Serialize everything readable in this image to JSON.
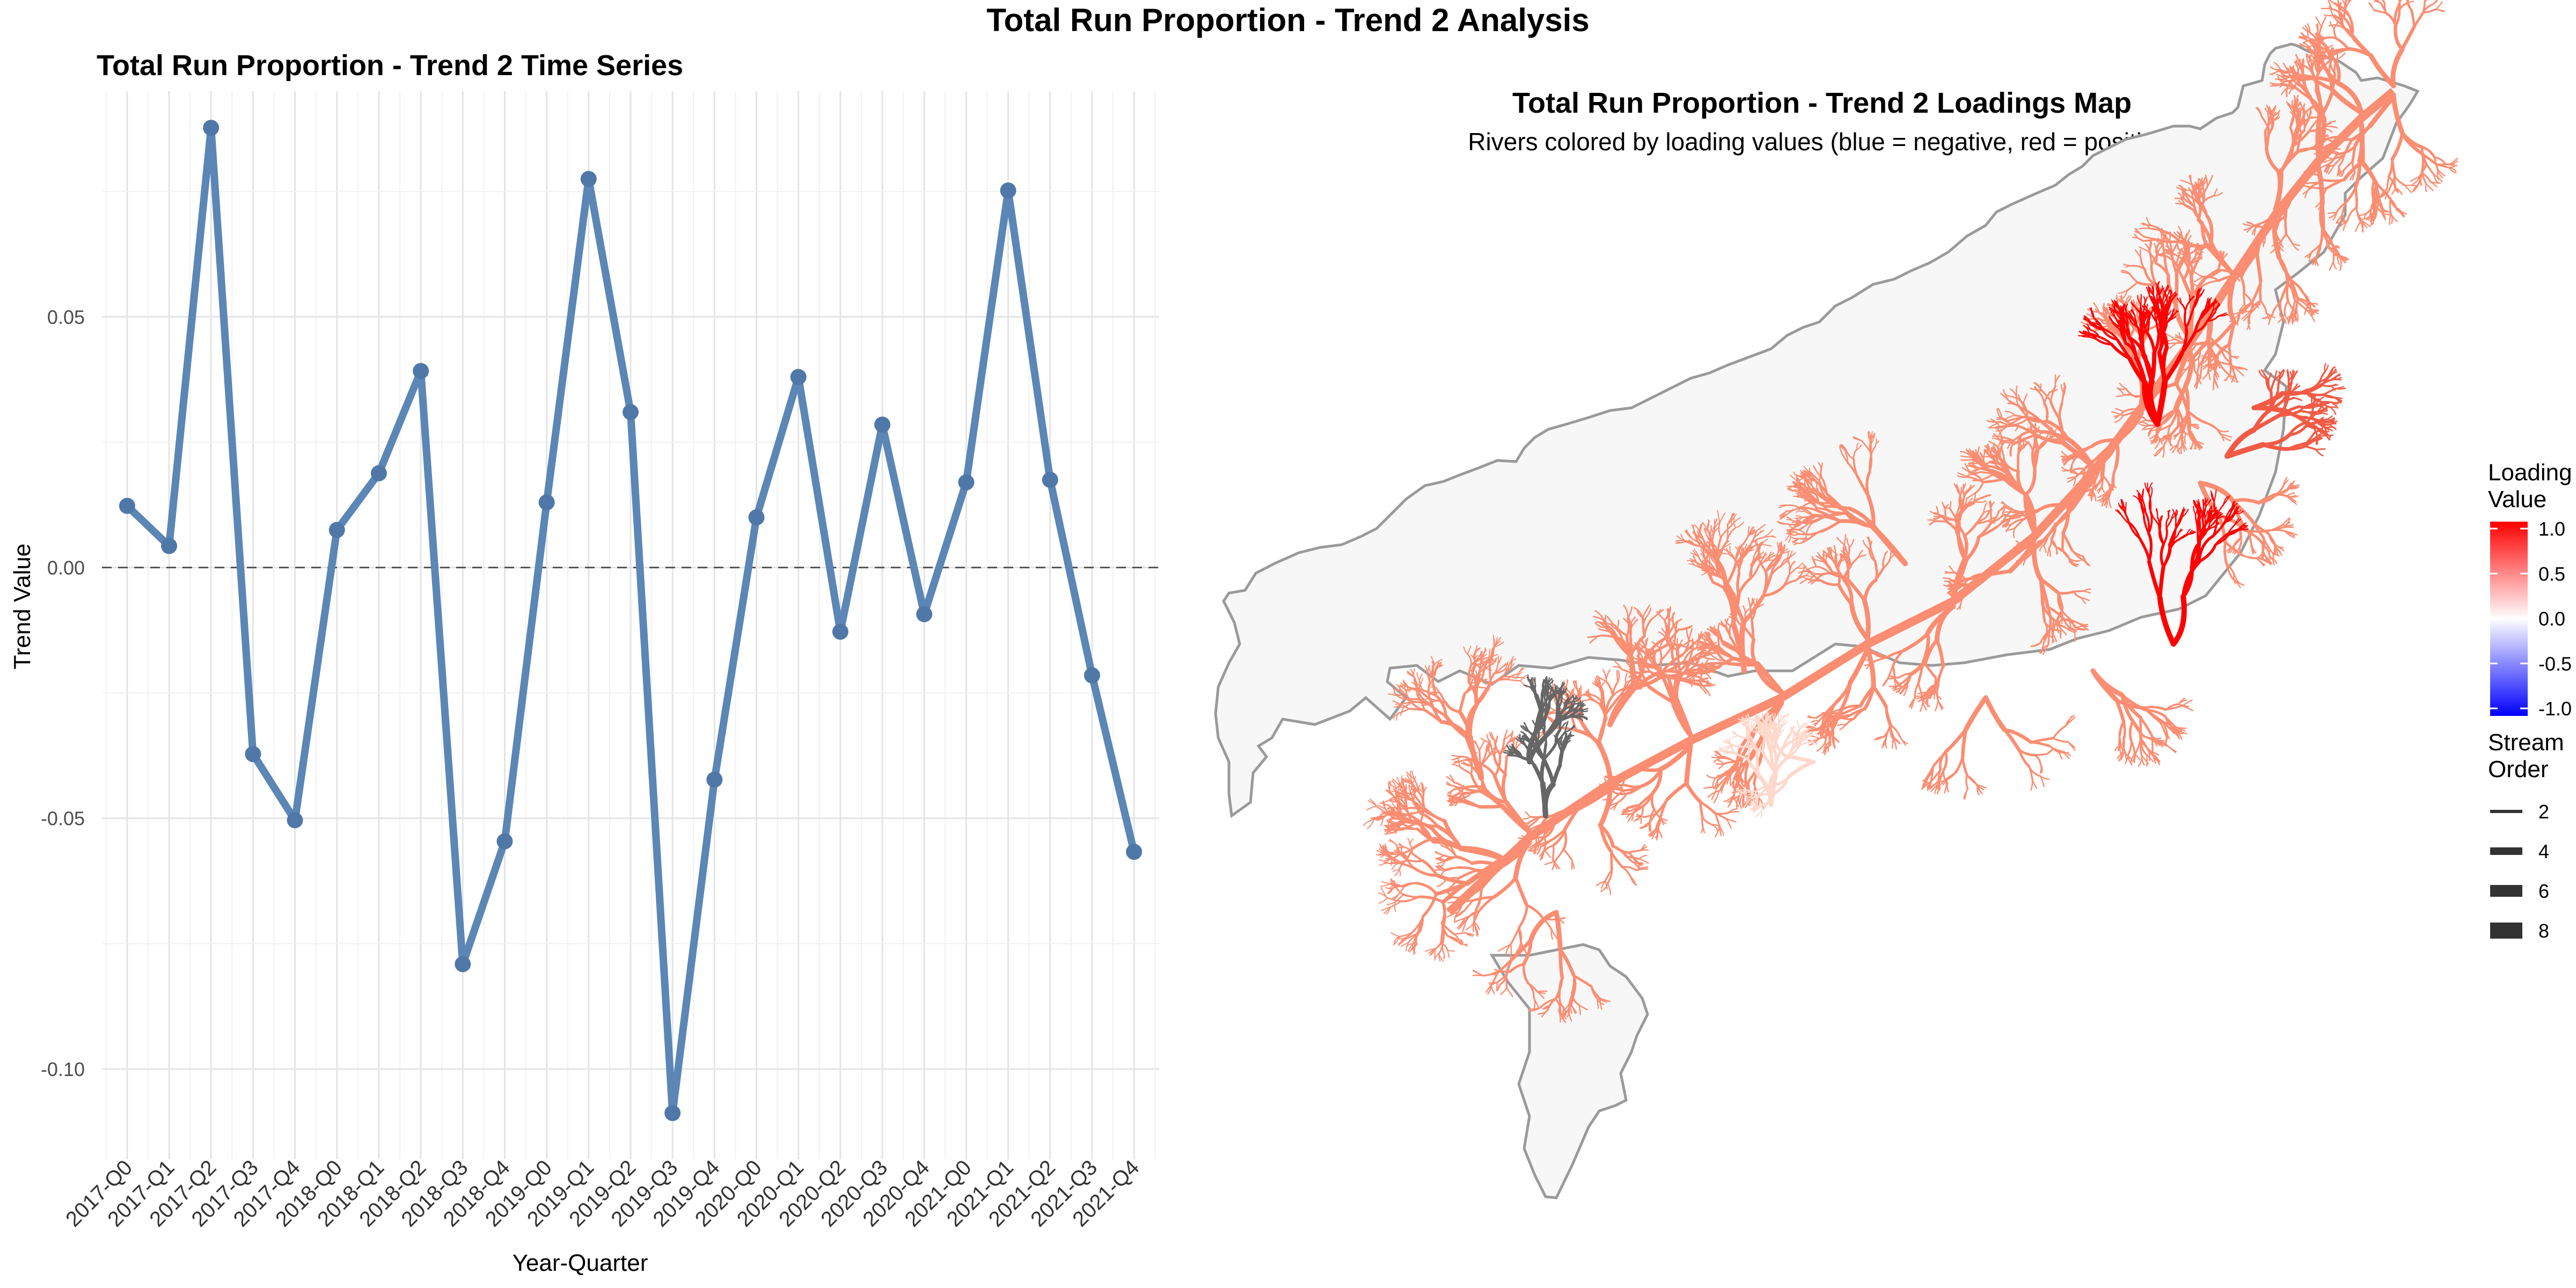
{
  "figure_title": "Total Run Proportion - Trend 2 Analysis",
  "chart_data": [
    {
      "type": "line",
      "title": "Total Run Proportion - Trend 2 Time Series",
      "xlabel": "Year-Quarter",
      "ylabel": "Trend Value",
      "categories": [
        "2017-Q0",
        "2017-Q1",
        "2017-Q2",
        "2017-Q3",
        "2017-Q4",
        "2018-Q0",
        "2018-Q1",
        "2018-Q2",
        "2018-Q3",
        "2018-Q4",
        "2019-Q0",
        "2019-Q1",
        "2019-Q2",
        "2019-Q3",
        "2019-Q4",
        "2020-Q0",
        "2020-Q1",
        "2020-Q2",
        "2020-Q3",
        "2020-Q4",
        "2021-Q0",
        "2021-Q1",
        "2021-Q2",
        "2021-Q3",
        "2021-Q4"
      ],
      "series": [
        {
          "values": [
            0.0123,
            0.0043,
            0.0877,
            -0.0372,
            -0.0504,
            0.0075,
            0.0188,
            0.0392,
            -0.0791,
            -0.0546,
            0.013,
            0.0775,
            0.031,
            -0.1088,
            -0.0423,
            0.01,
            0.038,
            -0.0128,
            0.0285,
            -0.0093,
            0.017,
            0.0752,
            0.0175,
            -0.0215,
            -0.0567
          ]
        }
      ],
      "yticks": [
        0.05,
        0.0,
        -0.05,
        -0.1
      ],
      "ytick_labels": [
        "0.05",
        "0.00",
        "-0.05",
        "-0.10"
      ],
      "ylim": [
        -0.118,
        0.095
      ],
      "reference_line_y": 0,
      "grid": true,
      "line_color": "#5b86b5",
      "point_color": "#4f78a8"
    },
    {
      "type": "map",
      "title": "Total Run Proportion - Trend 2 Loadings Map",
      "subtitle": "Rivers colored by loading values (blue = negative, red = positive)",
      "legend_color": {
        "title_line1": "Loading",
        "title_line2": "Value",
        "ticks": [
          "1.0",
          "0.5",
          "0.0",
          "-0.5",
          "-1.0"
        ],
        "low_color": "#0000ff",
        "mid_color": "#ffffff",
        "high_color": "#ff0000"
      },
      "legend_size": {
        "title_line1": "Stream",
        "title_line2": "Order",
        "items": [
          "2",
          "4",
          "6",
          "8"
        ]
      },
      "colors": {
        "basin_fill": "#f7f7f7",
        "basin_outline": "#9a9a9a",
        "rivers_main": "#fb8d72",
        "rivers_mid": "#ffd8cc",
        "rivers_strong": "#ff0000",
        "rivers_medium": "#f25a45",
        "rivers_na": "#666666"
      }
    }
  ]
}
